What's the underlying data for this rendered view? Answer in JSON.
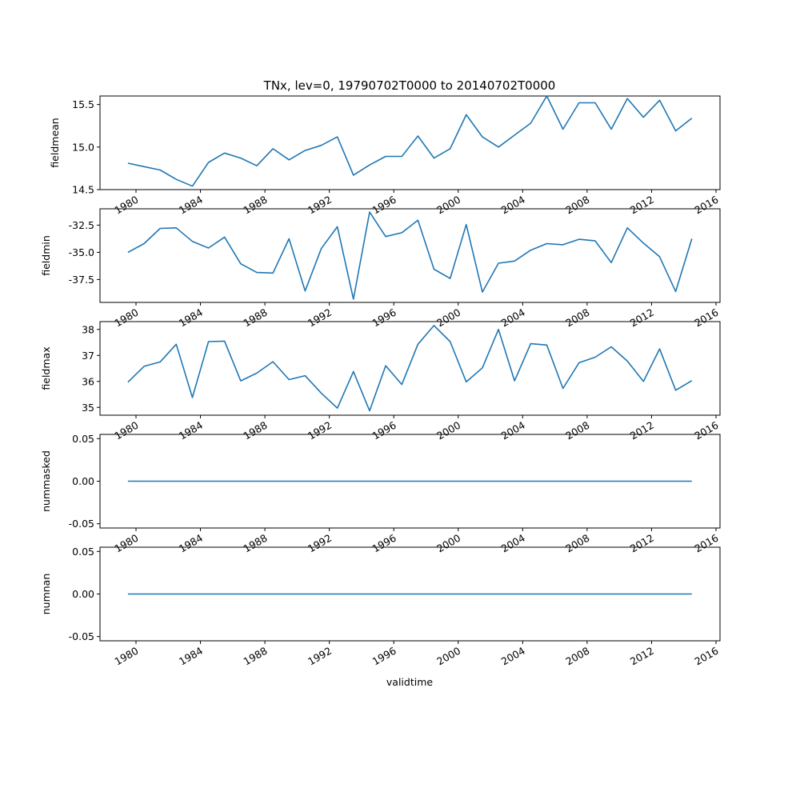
{
  "title": "TNx, lev=0, 19790702T0000 to 20140702T0000",
  "line_color": "#1f77b4",
  "chart_data": {
    "type": "line",
    "title": "TNx, lev=0, 19790702T0000 to 20140702T0000",
    "xlabel": "validtime",
    "x": [
      "1979-07-02",
      "1980-07-02",
      "1981-07-02",
      "1982-07-02",
      "1983-07-02",
      "1984-07-02",
      "1985-07-02",
      "1986-07-02",
      "1987-07-02",
      "1988-07-02",
      "1989-07-02",
      "1990-07-02",
      "1991-07-02",
      "1992-07-02",
      "1993-07-02",
      "1994-07-02",
      "1995-07-02",
      "1996-07-02",
      "1997-07-02",
      "1998-07-02",
      "1999-07-02",
      "2000-07-02",
      "2001-07-02",
      "2002-07-02",
      "2003-07-02",
      "2004-07-02",
      "2005-07-02",
      "2006-07-02",
      "2007-07-02",
      "2008-07-02",
      "2009-07-02",
      "2010-07-02",
      "2011-07-02",
      "2012-07-02",
      "2013-07-02",
      "2014-07-02"
    ],
    "xticks": [
      "1980",
      "1984",
      "1988",
      "1992",
      "1996",
      "2000",
      "2004",
      "2008",
      "2012",
      "2016"
    ],
    "panels": [
      {
        "ylabel": "fieldmean",
        "yticks": [
          "14.5",
          "15.0",
          "15.5"
        ],
        "ylim": [
          14.5,
          15.6
        ],
        "values": [
          14.81,
          14.77,
          14.73,
          14.62,
          14.54,
          14.82,
          14.93,
          14.87,
          14.78,
          14.98,
          14.85,
          14.96,
          15.02,
          15.12,
          14.67,
          14.79,
          14.89,
          14.89,
          15.13,
          14.87,
          14.98,
          15.38,
          15.12,
          15.0,
          15.14,
          15.28,
          15.6,
          15.21,
          15.52,
          15.52,
          15.21,
          15.57,
          15.35,
          15.55,
          15.19,
          15.34
        ]
      },
      {
        "ylabel": "fieldmin",
        "yticks": [
          "-32.5",
          "-35.0",
          "-37.5"
        ],
        "ylim": [
          -39.6,
          -31.0
        ],
        "values": [
          -35.0,
          -34.2,
          -32.8,
          -32.75,
          -34.0,
          -34.6,
          -33.6,
          -36.05,
          -36.85,
          -36.9,
          -33.75,
          -38.55,
          -34.65,
          -32.65,
          -39.3,
          -31.3,
          -33.55,
          -33.2,
          -32.05,
          -36.55,
          -37.4,
          -32.45,
          -38.65,
          -36.0,
          -35.8,
          -34.8,
          -34.2,
          -34.3,
          -33.8,
          -33.95,
          -35.95,
          -32.75,
          -34.15,
          -35.4,
          -38.6,
          -33.75
        ]
      },
      {
        "ylabel": "fieldmax",
        "yticks": [
          "35",
          "36",
          "37",
          "38"
        ],
        "ylim": [
          34.7,
          38.3
        ],
        "values": [
          35.97,
          36.58,
          36.75,
          37.43,
          35.38,
          37.53,
          37.55,
          36.02,
          36.32,
          36.76,
          36.07,
          36.22,
          35.55,
          34.97,
          36.38,
          34.87,
          36.6,
          35.88,
          37.43,
          38.15,
          37.53,
          35.98,
          36.52,
          38.0,
          36.02,
          37.45,
          37.4,
          35.73,
          36.72,
          36.93,
          37.33,
          36.78,
          36.0,
          37.25,
          35.66,
          36.03
        ]
      },
      {
        "ylabel": "nummasked",
        "yticks": [
          "0.05",
          "0.00",
          "-0.05"
        ],
        "ylim": [
          -0.055,
          0.055
        ],
        "values": [
          0,
          0,
          0,
          0,
          0,
          0,
          0,
          0,
          0,
          0,
          0,
          0,
          0,
          0,
          0,
          0,
          0,
          0,
          0,
          0,
          0,
          0,
          0,
          0,
          0,
          0,
          0,
          0,
          0,
          0,
          0,
          0,
          0,
          0,
          0,
          0
        ]
      },
      {
        "ylabel": "numnan",
        "yticks": [
          "0.05",
          "0.00",
          "-0.05"
        ],
        "ylim": [
          -0.055,
          0.055
        ],
        "values": [
          0,
          0,
          0,
          0,
          0,
          0,
          0,
          0,
          0,
          0,
          0,
          0,
          0,
          0,
          0,
          0,
          0,
          0,
          0,
          0,
          0,
          0,
          0,
          0,
          0,
          0,
          0,
          0,
          0,
          0,
          0,
          0,
          0,
          0,
          0,
          0
        ]
      }
    ]
  }
}
